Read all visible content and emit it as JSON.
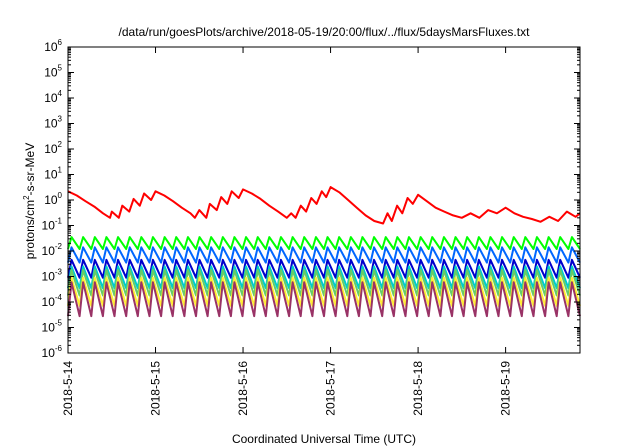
{
  "chart_data": {
    "type": "line",
    "title": "/data/run/goesPlots/archive/2018-05-19/20:00/flux/../flux/5daysMarsFluxes.txt",
    "xlabel": "Coordinated Universal Time (UTC)",
    "ylabel_parts": [
      "protons/cm",
      "2",
      "-s-sr-MeV"
    ],
    "yscale": "log",
    "ylim": [
      1e-06,
      1000000.0
    ],
    "y_ticks": [
      {
        "base": "10",
        "exp": "6",
        "value": 1000000.0
      },
      {
        "base": "10",
        "exp": "5",
        "value": 100000.0
      },
      {
        "base": "10",
        "exp": "4",
        "value": 10000.0
      },
      {
        "base": "10",
        "exp": "3",
        "value": 1000.0
      },
      {
        "base": "10",
        "exp": "2",
        "value": 100.0
      },
      {
        "base": "10",
        "exp": "1",
        "value": 10.0
      },
      {
        "base": "10",
        "exp": "0",
        "value": 1.0
      },
      {
        "base": "10",
        "exp": "-1",
        "value": 0.1
      },
      {
        "base": "10",
        "exp": "-2",
        "value": 0.01
      },
      {
        "base": "10",
        "exp": "-3",
        "value": 0.001
      },
      {
        "base": "10",
        "exp": "-4",
        "value": 0.0001
      },
      {
        "base": "10",
        "exp": "-5",
        "value": 1e-05
      },
      {
        "base": "10",
        "exp": "-6",
        "value": 1e-06
      }
    ],
    "x_ticks": [
      {
        "label": "2018-5-14",
        "value": 0
      },
      {
        "label": "2018-5-15",
        "value": 1
      },
      {
        "label": "2018-5-16",
        "value": 2
      },
      {
        "label": "2018-5-17",
        "value": 3
      },
      {
        "label": "2018-5-18",
        "value": 4
      },
      {
        "label": "2018-5-19",
        "value": 5
      }
    ],
    "xlim": [
      0,
      5.85
    ],
    "series": [
      {
        "color": "#ff0000",
        "x": [
          0.0,
          0.1,
          0.2,
          0.3,
          0.4,
          0.48,
          0.5,
          0.58,
          0.62,
          0.7,
          0.75,
          0.82,
          0.87,
          0.95,
          1.0,
          1.1,
          1.2,
          1.3,
          1.4,
          1.45,
          1.5,
          1.58,
          1.62,
          1.7,
          1.75,
          1.82,
          1.87,
          1.95,
          2.0,
          2.1,
          2.2,
          2.3,
          2.4,
          2.5,
          2.55,
          2.6,
          2.66,
          2.72,
          2.78,
          2.84,
          2.9,
          2.95,
          3.0,
          3.1,
          3.2,
          3.3,
          3.4,
          3.5,
          3.6,
          3.65,
          3.7,
          3.76,
          3.82,
          3.88,
          3.94,
          4.0,
          4.1,
          4.2,
          4.3,
          4.4,
          4.5,
          4.6,
          4.7,
          4.8,
          4.9,
          5.0,
          5.1,
          5.2,
          5.3,
          5.4,
          5.5,
          5.6,
          5.7,
          5.8,
          5.85
        ],
        "values": [
          2.2,
          1.5,
          0.9,
          0.55,
          0.3,
          0.2,
          0.35,
          0.2,
          0.6,
          0.35,
          1.1,
          0.6,
          1.8,
          1.0,
          2.2,
          1.5,
          0.9,
          0.5,
          0.3,
          0.2,
          0.4,
          0.2,
          0.7,
          0.4,
          1.3,
          0.7,
          2.2,
          1.2,
          2.6,
          1.8,
          1.1,
          0.6,
          0.35,
          0.2,
          0.3,
          0.2,
          0.6,
          0.35,
          1.2,
          0.7,
          2.2,
          1.3,
          3.2,
          2.0,
          1.0,
          0.5,
          0.25,
          0.15,
          0.12,
          0.3,
          0.15,
          0.6,
          0.3,
          1.2,
          0.7,
          1.6,
          0.9,
          0.5,
          0.35,
          0.25,
          0.2,
          0.3,
          0.2,
          0.4,
          0.3,
          0.5,
          0.3,
          0.22,
          0.18,
          0.14,
          0.22,
          0.15,
          0.35,
          0.22,
          0.3
        ]
      },
      {
        "color": "#00ff00",
        "teeth": {
          "count": 44,
          "hi": 0.035,
          "lo": 0.012
        }
      },
      {
        "color": "#0066ff",
        "teeth": {
          "count": 44,
          "hi": 0.014,
          "lo": 0.0035
        }
      },
      {
        "color": "#0000cc",
        "teeth": {
          "count": 44,
          "hi": 0.0045,
          "lo": 0.0009
        }
      },
      {
        "color": "#00cccc",
        "teeth": {
          "count": 44,
          "hi": 0.0025,
          "lo": 0.00035
        }
      },
      {
        "color": "#66cc66",
        "teeth": {
          "count": 44,
          "hi": 0.0018,
          "lo": 0.00018
        }
      },
      {
        "color": "#ffee33",
        "teeth": {
          "count": 44,
          "hi": 0.0009,
          "lo": 7e-05
        }
      },
      {
        "color": "#993366",
        "teeth": {
          "count": 44,
          "hi": 0.0006,
          "lo": 2.8e-05
        }
      }
    ]
  }
}
